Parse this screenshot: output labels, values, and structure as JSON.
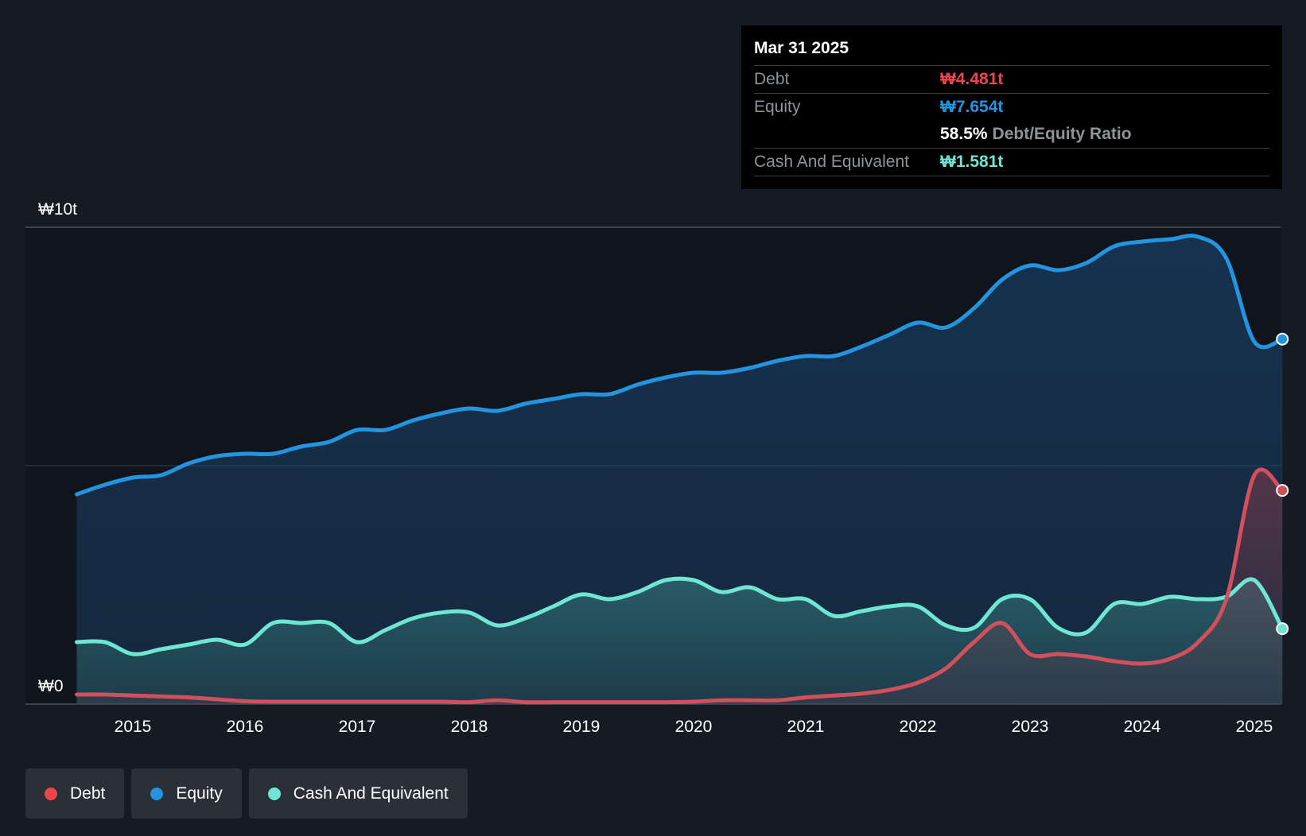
{
  "tooltip": {
    "date": "Mar 31 2025",
    "debt_label": "Debt",
    "debt_value": "₩4.481t",
    "equity_label": "Equity",
    "equity_value": "₩7.654t",
    "ratio_value": "58.5%",
    "ratio_label": "Debt/Equity Ratio",
    "cash_label": "Cash And Equivalent",
    "cash_value": "₩1.581t"
  },
  "legend": {
    "debt": "Debt",
    "equity": "Equity",
    "cash": "Cash And Equivalent"
  },
  "colors": {
    "debt": "#e8474f",
    "equity": "#2394df",
    "cash": "#6ee6d3",
    "background": "#151b24"
  },
  "chart_data": {
    "type": "area",
    "title": "",
    "xlabel": "",
    "ylabel": "",
    "ylim": [
      0,
      10
    ],
    "y_unit": "₩ trillion",
    "y_tick_labels": [
      "₩0",
      "₩10t"
    ],
    "x_ticks": [
      2015,
      2016,
      2017,
      2018,
      2019,
      2020,
      2021,
      2022,
      2023,
      2024,
      2025
    ],
    "x_tick_labels": [
      "2015",
      "2016",
      "2017",
      "2018",
      "2019",
      "2020",
      "2021",
      "2022",
      "2023",
      "2024",
      "2025"
    ],
    "series": [
      {
        "name": "Equity",
        "points": [
          [
            2014.5,
            4.4
          ],
          [
            2014.75,
            4.6
          ],
          [
            2015.0,
            4.75
          ],
          [
            2015.25,
            4.8
          ],
          [
            2015.5,
            5.05
          ],
          [
            2015.75,
            5.2
          ],
          [
            2016.0,
            5.25
          ],
          [
            2016.25,
            5.25
          ],
          [
            2016.5,
            5.4
          ],
          [
            2016.75,
            5.5
          ],
          [
            2017.0,
            5.75
          ],
          [
            2017.25,
            5.75
          ],
          [
            2017.5,
            5.95
          ],
          [
            2017.75,
            6.1
          ],
          [
            2018.0,
            6.2
          ],
          [
            2018.25,
            6.15
          ],
          [
            2018.5,
            6.3
          ],
          [
            2018.75,
            6.4
          ],
          [
            2019.0,
            6.5
          ],
          [
            2019.25,
            6.5
          ],
          [
            2019.5,
            6.7
          ],
          [
            2019.75,
            6.85
          ],
          [
            2020.0,
            6.95
          ],
          [
            2020.25,
            6.95
          ],
          [
            2020.5,
            7.05
          ],
          [
            2020.75,
            7.2
          ],
          [
            2021.0,
            7.3
          ],
          [
            2021.25,
            7.3
          ],
          [
            2021.5,
            7.5
          ],
          [
            2021.75,
            7.75
          ],
          [
            2022.0,
            8.0
          ],
          [
            2022.25,
            7.9
          ],
          [
            2022.5,
            8.3
          ],
          [
            2022.75,
            8.9
          ],
          [
            2023.0,
            9.2
          ],
          [
            2023.25,
            9.1
          ],
          [
            2023.5,
            9.25
          ],
          [
            2023.75,
            9.6
          ],
          [
            2024.0,
            9.7
          ],
          [
            2024.25,
            9.75
          ],
          [
            2024.5,
            9.8
          ],
          [
            2024.75,
            9.35
          ],
          [
            2025.0,
            7.6
          ],
          [
            2025.25,
            7.654
          ]
        ]
      },
      {
        "name": "Cash And Equivalent",
        "points": [
          [
            2014.5,
            1.3
          ],
          [
            2014.75,
            1.3
          ],
          [
            2015.0,
            1.05
          ],
          [
            2015.25,
            1.15
          ],
          [
            2015.5,
            1.25
          ],
          [
            2015.75,
            1.35
          ],
          [
            2016.0,
            1.25
          ],
          [
            2016.25,
            1.7
          ],
          [
            2016.5,
            1.7
          ],
          [
            2016.75,
            1.7
          ],
          [
            2017.0,
            1.3
          ],
          [
            2017.25,
            1.55
          ],
          [
            2017.5,
            1.8
          ],
          [
            2017.75,
            1.92
          ],
          [
            2018.0,
            1.92
          ],
          [
            2018.25,
            1.65
          ],
          [
            2018.5,
            1.8
          ],
          [
            2018.75,
            2.05
          ],
          [
            2019.0,
            2.3
          ],
          [
            2019.25,
            2.2
          ],
          [
            2019.5,
            2.35
          ],
          [
            2019.75,
            2.6
          ],
          [
            2020.0,
            2.6
          ],
          [
            2020.25,
            2.35
          ],
          [
            2020.5,
            2.45
          ],
          [
            2020.75,
            2.2
          ],
          [
            2021.0,
            2.2
          ],
          [
            2021.25,
            1.85
          ],
          [
            2021.5,
            1.95
          ],
          [
            2021.75,
            2.05
          ],
          [
            2022.0,
            2.05
          ],
          [
            2022.25,
            1.65
          ],
          [
            2022.5,
            1.6
          ],
          [
            2022.75,
            2.2
          ],
          [
            2023.0,
            2.2
          ],
          [
            2023.25,
            1.6
          ],
          [
            2023.5,
            1.5
          ],
          [
            2023.75,
            2.1
          ],
          [
            2024.0,
            2.1
          ],
          [
            2024.25,
            2.25
          ],
          [
            2024.5,
            2.2
          ],
          [
            2024.75,
            2.25
          ],
          [
            2025.0,
            2.6
          ],
          [
            2025.25,
            1.581
          ]
        ]
      },
      {
        "name": "Debt",
        "points": [
          [
            2014.5,
            0.2
          ],
          [
            2014.75,
            0.2
          ],
          [
            2015.0,
            0.18
          ],
          [
            2015.25,
            0.16
          ],
          [
            2015.5,
            0.14
          ],
          [
            2015.75,
            0.1
          ],
          [
            2016.0,
            0.06
          ],
          [
            2016.25,
            0.05
          ],
          [
            2016.5,
            0.05
          ],
          [
            2016.75,
            0.05
          ],
          [
            2017.0,
            0.05
          ],
          [
            2017.25,
            0.05
          ],
          [
            2017.5,
            0.05
          ],
          [
            2017.75,
            0.05
          ],
          [
            2018.0,
            0.04
          ],
          [
            2018.25,
            0.08
          ],
          [
            2018.5,
            0.04
          ],
          [
            2018.75,
            0.04
          ],
          [
            2019.0,
            0.04
          ],
          [
            2019.25,
            0.04
          ],
          [
            2019.5,
            0.04
          ],
          [
            2019.75,
            0.04
          ],
          [
            2020.0,
            0.05
          ],
          [
            2020.25,
            0.08
          ],
          [
            2020.5,
            0.08
          ],
          [
            2020.75,
            0.08
          ],
          [
            2021.0,
            0.14
          ],
          [
            2021.25,
            0.18
          ],
          [
            2021.5,
            0.22
          ],
          [
            2021.75,
            0.3
          ],
          [
            2022.0,
            0.45
          ],
          [
            2022.25,
            0.75
          ],
          [
            2022.5,
            1.3
          ],
          [
            2022.75,
            1.7
          ],
          [
            2023.0,
            1.05
          ],
          [
            2023.25,
            1.05
          ],
          [
            2023.5,
            1.0
          ],
          [
            2023.75,
            0.9
          ],
          [
            2024.0,
            0.85
          ],
          [
            2024.25,
            0.95
          ],
          [
            2024.5,
            1.3
          ],
          [
            2024.75,
            2.2
          ],
          [
            2025.0,
            4.8
          ],
          [
            2025.25,
            4.481
          ]
        ]
      }
    ],
    "legend_position": "bottom-left",
    "grid": true,
    "tooltip_date": "Mar 31 2025"
  }
}
